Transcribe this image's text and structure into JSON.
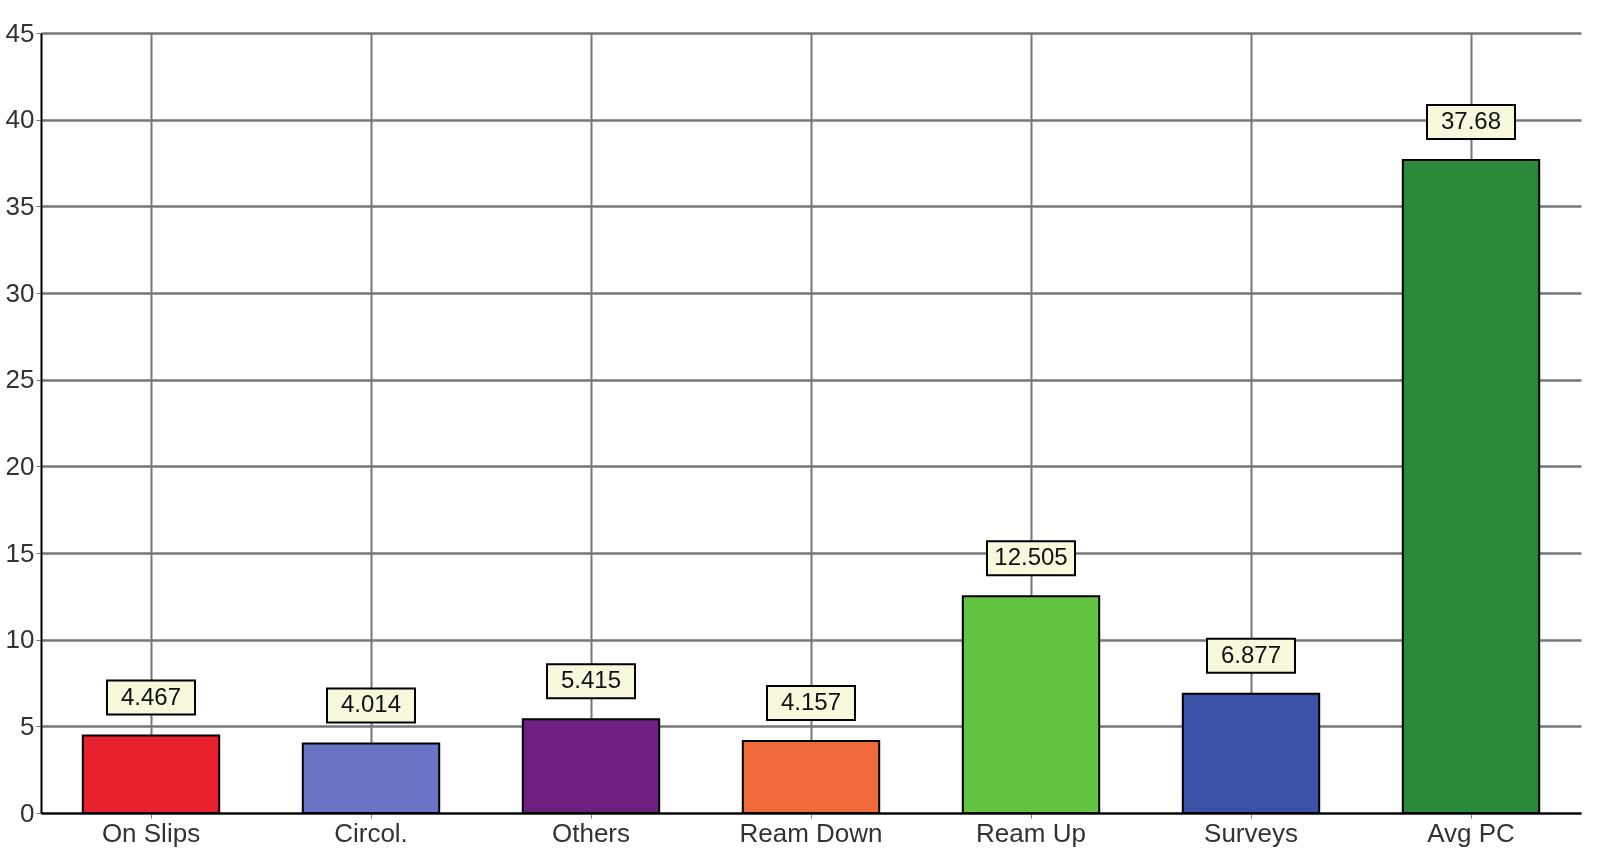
{
  "chart_data": {
    "type": "bar",
    "categories": [
      "On Slips",
      "Circol.",
      "Others",
      "Ream Down",
      "Ream Up",
      "Surveys",
      "Avg PC"
    ],
    "values": [
      4.467,
      4.014,
      5.415,
      4.157,
      12.505,
      6.877,
      37.68
    ],
    "colors": [
      "#e8212e",
      "#6b74c4",
      "#6e1f82",
      "#f0693a",
      "#63c441",
      "#3a53a8",
      "#2a8a3a"
    ],
    "ylim": [
      0,
      45
    ],
    "yticks": [
      0,
      5,
      10,
      15,
      20,
      25,
      30,
      35,
      40,
      45
    ],
    "grid": true,
    "data_labels": true
  }
}
